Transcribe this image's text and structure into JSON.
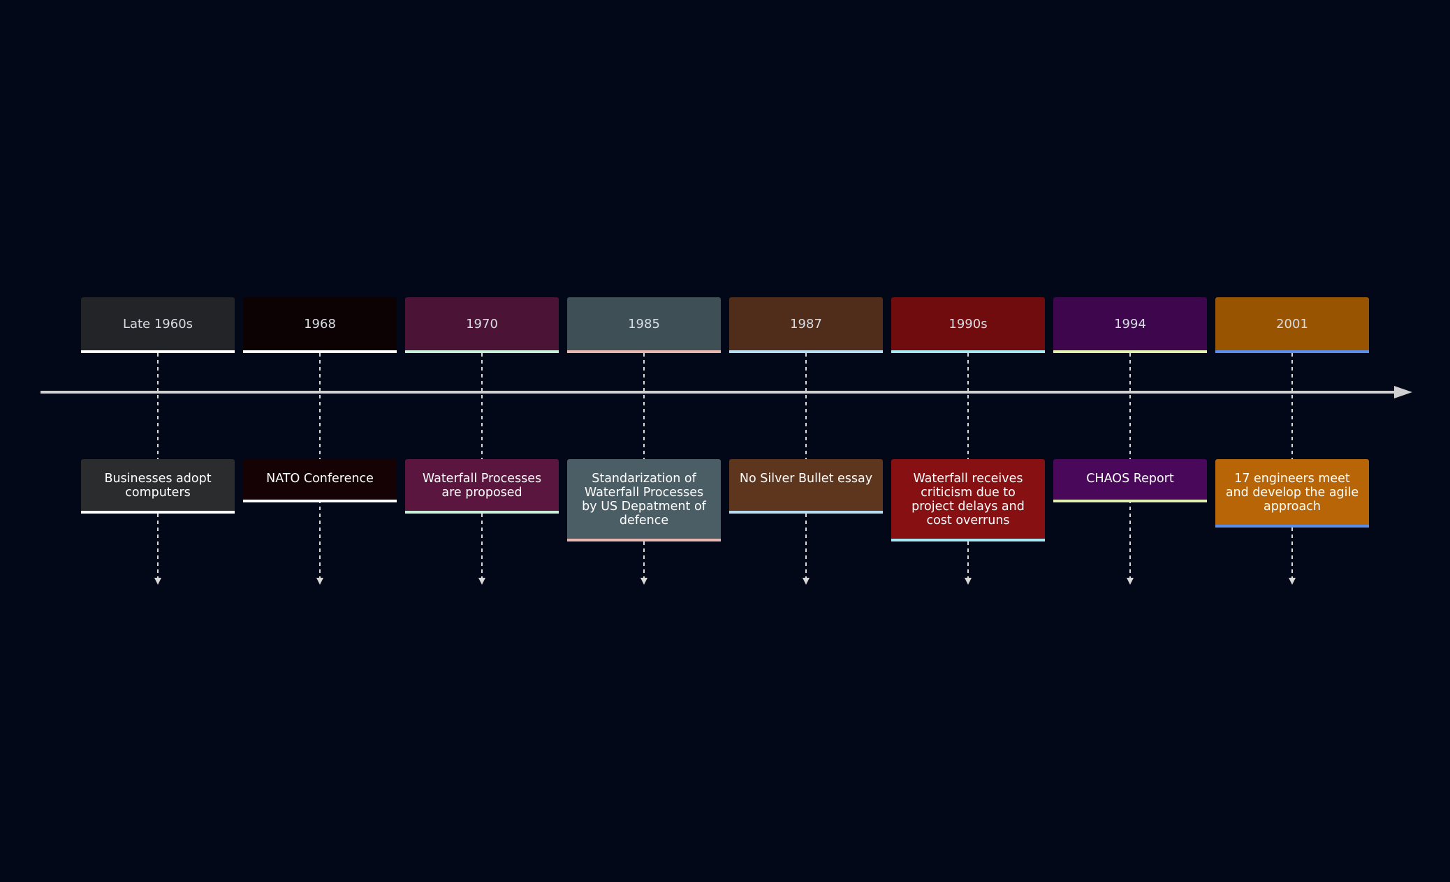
{
  "timeline": {
    "entries": [
      {
        "period": "Late 1960s",
        "event": "Businesses adopt computers",
        "period_color": "#222428",
        "event_color": "#2a2c2e",
        "accent_color": "#ffffff"
      },
      {
        "period": "1968",
        "event": "NATO Conference",
        "period_color": "#0c0103",
        "event_color": "#150204",
        "accent_color": "#ffffff"
      },
      {
        "period": "1970",
        "event": "Waterfall Processes are proposed",
        "period_color": "#4b1336",
        "event_color": "#5a163f",
        "accent_color": "#c8f0d8"
      },
      {
        "period": "1985",
        "event": "Standarization of Waterfall Processes by US Depatment of defence",
        "period_color": "#3f4f56",
        "event_color": "#4c5e65",
        "accent_color": "#e8b8b0"
      },
      {
        "period": "1987",
        "event": "No Silver Bullet essay",
        "period_color": "#4f2d1a",
        "event_color": "#5e361e",
        "accent_color": "#b8dcf0"
      },
      {
        "period": "1990s",
        "event": "Waterfall receives criticism due to project delays and cost overruns",
        "period_color": "#700c0e",
        "event_color": "#861012",
        "accent_color": "#a8e8f0"
      },
      {
        "period": "1994",
        "event": "CHAOS Report",
        "period_color": "#3e064c",
        "event_color": "#4a085a",
        "accent_color": "#e0f0b0"
      },
      {
        "period": "2001",
        "event": "17 engineers meet and develop the agile approach",
        "period_color": "#995402",
        "event_color": "#b86507",
        "accent_color": "#5a8ee8"
      }
    ]
  },
  "colors": {
    "background": "#020817",
    "axis": "#d0d0d0",
    "connector": "#d8d8d8"
  }
}
